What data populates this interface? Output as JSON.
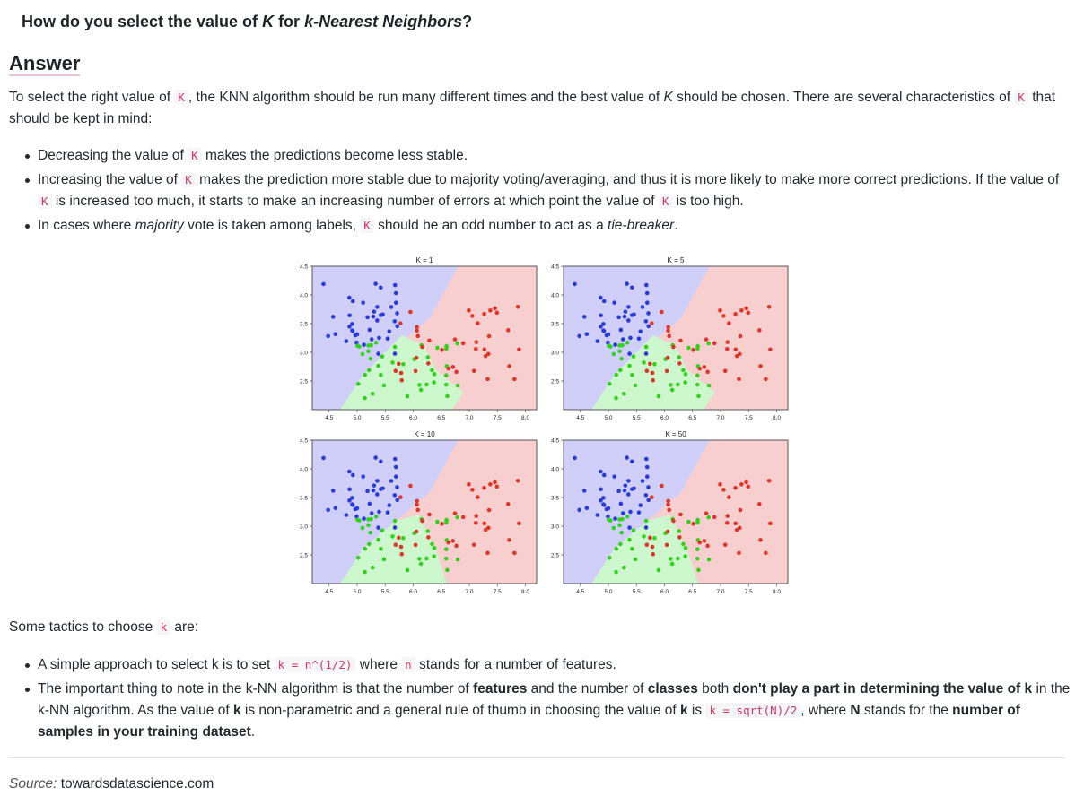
{
  "question": {
    "prefix": "How do you select the value of ",
    "k": "K",
    "mid": " for ",
    "algo": "k-Nearest Neighbors",
    "suffix": "?"
  },
  "answer_heading": "Answer",
  "intro": {
    "p1": "To select the right value of ",
    "c1": "K",
    "p2": ", the KNN algorithm should be run many different times and the best value of ",
    "k": "K",
    "p3": " should be chosen. There are several characteristics of ",
    "c2": "K",
    "p4": " that should be kept in mind:"
  },
  "bullets": [
    {
      "a": "Decreasing the value of ",
      "c": "K",
      "b": " makes the predictions become less stable."
    },
    {
      "a": "Increasing the value of ",
      "c": "K",
      "b": " makes the prediction more stable due to majority voting/averaging, and thus it is more likely to make more correct predictions. If the value of ",
      "c2": "K",
      "d": " is increased too much, it starts to make an increasing number of errors at which point the value of ",
      "c3": "K",
      "e": " is too high."
    },
    {
      "a": "In cases where ",
      "i1": "majority",
      "b": " vote is taken among labels, ",
      "c": "K",
      "d": " should be an odd number to act as a ",
      "i2": "tie-breaker",
      "e": "."
    }
  ],
  "tactics": {
    "a": "Some tactics to choose ",
    "c": "k",
    "b": " are:"
  },
  "tactic_items": [
    {
      "a": "A simple approach to select k is to set ",
      "c1": "k = n^(1/2)",
      "b": " where ",
      "c2": "n",
      "d": " stands for a number of features."
    },
    {
      "a": "The important thing to note in the k-NN algorithm is that the number of ",
      "b1": "features",
      "b": " and the number of ",
      "b2": "classes",
      "c": " both ",
      "b3": "don't play a part in determining the value of k",
      "d": " in the k-NN algorithm. As the value of ",
      "b4": "k",
      "e": " is non-parametric and a general rule of thumb in choosing the value of ",
      "b5": "k",
      "f": " is ",
      "c1": "k = sqrt(N)/2",
      "g": ", where ",
      "b6": "N",
      "h": " stands for the ",
      "b7": "number of samples in your training dataset",
      "i": "."
    }
  ],
  "source": {
    "label": "Source:",
    "site": "towardsdatascience.com"
  },
  "chart_data": [
    {
      "type": "scatter",
      "title": "K = 1",
      "xticks": [
        "4.5",
        "5.0",
        "5.5",
        "6.0",
        "6.5",
        "7.0",
        "7.5",
        "8.0"
      ],
      "yticks": [
        "2.5",
        "3.0",
        "3.5",
        "4.0",
        "4.5"
      ],
      "xlim": [
        4.2,
        8.2
      ],
      "ylim": [
        2.0,
        4.5
      ]
    },
    {
      "type": "scatter",
      "title": "K = 5",
      "xticks": [
        "4.5",
        "5.0",
        "5.5",
        "6.0",
        "6.5",
        "7.0",
        "7.5",
        "8.0"
      ],
      "yticks": [
        "2.5",
        "3.0",
        "3.5",
        "4.0",
        "4.5"
      ],
      "xlim": [
        4.2,
        8.2
      ],
      "ylim": [
        2.0,
        4.5
      ]
    },
    {
      "type": "scatter",
      "title": "K = 10",
      "xticks": [
        "4.5",
        "5.0",
        "5.5",
        "6.0",
        "6.5",
        "7.0",
        "7.5",
        "8.0"
      ],
      "yticks": [
        "2.5",
        "3.0",
        "3.5",
        "4.0",
        "4.5"
      ],
      "xlim": [
        4.2,
        8.2
      ],
      "ylim": [
        2.0,
        4.5
      ]
    },
    {
      "type": "scatter",
      "title": "K = 50",
      "xticks": [
        "4.5",
        "5.0",
        "5.5",
        "6.0",
        "6.5",
        "7.0",
        "7.5",
        "8.0"
      ],
      "yticks": [
        "2.5",
        "3.0",
        "3.5",
        "4.0",
        "4.5"
      ],
      "xlim": [
        4.2,
        8.2
      ],
      "ylim": [
        2.0,
        4.5
      ]
    }
  ],
  "colors": {
    "blue_region": "#cfcffa",
    "green_region": "#cdf7cd",
    "red_region": "#f7cfcf",
    "blue_point": "#2b3bd9",
    "green_point": "#33d11c",
    "red_point": "#e0352b"
  }
}
